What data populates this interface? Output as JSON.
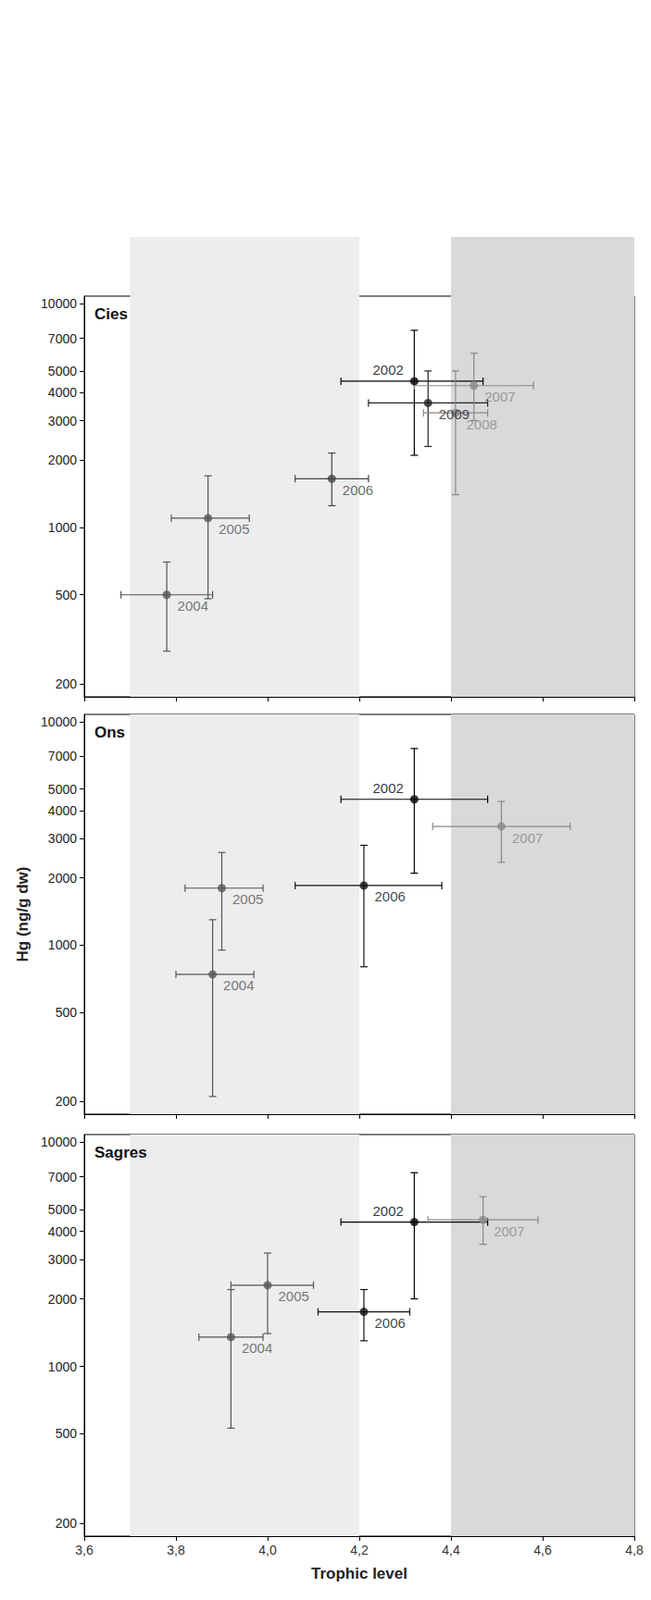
{
  "chart_data": [
    {
      "type": "scatter",
      "title": "Cies",
      "log": "y",
      "grid": false,
      "tick_labels": "y",
      "xlim": [
        3.6,
        4.8
      ],
      "xticks": [
        {
          "value": 3.6,
          "label": "3,6"
        },
        {
          "value": 3.8,
          "label": "3,8"
        },
        {
          "value": 4.0,
          "label": "4,0"
        },
        {
          "value": 4.2,
          "label": "4,2"
        },
        {
          "value": 4.4,
          "label": "4,4"
        },
        {
          "value": 4.6,
          "label": "4,6"
        },
        {
          "value": 4.8,
          "label": "4,8"
        }
      ],
      "ylim": [
        175,
        10800
      ],
      "yticks": [
        200,
        500,
        1000,
        2000,
        3000,
        4000,
        5000,
        7000,
        10000
      ],
      "shaded_ranges": [
        {
          "x": [
            3.7,
            4.2
          ],
          "color": "#ededed"
        },
        {
          "x": [
            4.4,
            4.8
          ],
          "color": "#d9d9d9"
        }
      ],
      "points": [
        {
          "label": "2002",
          "x": 4.32,
          "y": 4500,
          "x_err": [
            4.16,
            4.47
          ],
          "y_err": [
            2100,
            7600
          ],
          "color": "#000000"
        },
        {
          "label": "2009",
          "x": 4.35,
          "y": 3600,
          "x_err": [
            4.22,
            4.48
          ],
          "y_err": [
            2300,
            5000
          ],
          "color": "#222222"
        },
        {
          "label": "2007",
          "x": 4.45,
          "y": 4300,
          "x_err": [
            4.32,
            4.58
          ],
          "y_err": [
            3000,
            6000
          ],
          "color": "#888888"
        },
        {
          "label": "2008",
          "x": 4.41,
          "y": 3250,
          "x_err": [
            4.34,
            4.48
          ],
          "y_err": [
            1400,
            5000
          ],
          "color": "#888888"
        },
        {
          "label": "2006",
          "x": 4.14,
          "y": 1650,
          "x_err": [
            4.06,
            4.22
          ],
          "y_err": [
            1250,
            2150
          ],
          "color": "#444444"
        },
        {
          "label": "2005",
          "x": 3.87,
          "y": 1100,
          "x_err": [
            3.79,
            3.96
          ],
          "y_err": [
            480,
            1700
          ],
          "color": "#555555"
        },
        {
          "label": "2004",
          "x": 3.78,
          "y": 500,
          "x_err": [
            3.68,
            3.88
          ],
          "y_err": [
            280,
            700
          ],
          "color": "#555555"
        }
      ]
    },
    {
      "type": "scatter",
      "title": "Ons",
      "log": "y",
      "grid": false,
      "tick_labels": "y",
      "ylabel": "Hg (ng/g dw)",
      "xlim": [
        3.6,
        4.8
      ],
      "xticks": [
        {
          "value": 3.6,
          "label": "3,6"
        },
        {
          "value": 3.8,
          "label": "3,8"
        },
        {
          "value": 4.0,
          "label": "4,0"
        },
        {
          "value": 4.2,
          "label": "4,2"
        },
        {
          "value": 4.4,
          "label": "4,4"
        },
        {
          "value": 4.6,
          "label": "4,6"
        },
        {
          "value": 4.8,
          "label": "4,8"
        }
      ],
      "ylim": [
        175,
        10800
      ],
      "yticks": [
        200,
        500,
        1000,
        2000,
        3000,
        4000,
        5000,
        7000,
        10000
      ],
      "shaded_ranges": [
        {
          "x": [
            3.7,
            4.2
          ],
          "color": "#ededed"
        },
        {
          "x": [
            4.4,
            4.8
          ],
          "color": "#d9d9d9"
        }
      ],
      "points": [
        {
          "label": "2002",
          "x": 4.32,
          "y": 4500,
          "x_err": [
            4.16,
            4.48
          ],
          "y_err": [
            2100,
            7600
          ],
          "color": "#000000"
        },
        {
          "label": "2007",
          "x": 4.51,
          "y": 3400,
          "x_err": [
            4.36,
            4.66
          ],
          "y_err": [
            2350,
            4400
          ],
          "color": "#888888"
        },
        {
          "label": "2006",
          "x": 4.21,
          "y": 1850,
          "x_err": [
            4.06,
            4.38
          ],
          "y_err": [
            800,
            2800
          ],
          "color": "#111111"
        },
        {
          "label": "2005",
          "x": 3.9,
          "y": 1800,
          "x_err": [
            3.82,
            3.99
          ],
          "y_err": [
            950,
            2600
          ],
          "color": "#555555"
        },
        {
          "label": "2004",
          "x": 3.88,
          "y": 740,
          "x_err": [
            3.8,
            3.97
          ],
          "y_err": [
            210,
            1300
          ],
          "color": "#555555"
        }
      ]
    },
    {
      "type": "scatter",
      "title": "Sagres",
      "log": "y",
      "grid": false,
      "xlabel": "Trophic level",
      "xlim": [
        3.6,
        4.8
      ],
      "xticks": [
        {
          "value": 3.6,
          "label": "3,6"
        },
        {
          "value": 3.8,
          "label": "3,8"
        },
        {
          "value": 4.0,
          "label": "4,0"
        },
        {
          "value": 4.2,
          "label": "4,2"
        },
        {
          "value": 4.4,
          "label": "4,4"
        },
        {
          "value": 4.6,
          "label": "4,6"
        },
        {
          "value": 4.8,
          "label": "4,8"
        }
      ],
      "ylim": [
        175,
        10800
      ],
      "yticks": [
        200,
        500,
        1000,
        2000,
        3000,
        4000,
        5000,
        7000,
        10000
      ],
      "shaded_ranges": [
        {
          "x": [
            3.7,
            4.2
          ],
          "color": "#ededed"
        },
        {
          "x": [
            4.4,
            4.8
          ],
          "color": "#d9d9d9"
        }
      ],
      "points": [
        {
          "label": "2002",
          "x": 4.32,
          "y": 4400,
          "x_err": [
            4.16,
            4.48
          ],
          "y_err": [
            2000,
            7300
          ],
          "color": "#000000"
        },
        {
          "label": "2007",
          "x": 4.47,
          "y": 4500,
          "x_err": [
            4.35,
            4.59
          ],
          "y_err": [
            3500,
            5700
          ],
          "color": "#888888"
        },
        {
          "label": "2006",
          "x": 4.21,
          "y": 1750,
          "x_err": [
            4.11,
            4.31
          ],
          "y_err": [
            1300,
            2200
          ],
          "color": "#111111"
        },
        {
          "label": "2005",
          "x": 4.0,
          "y": 2300,
          "x_err": [
            3.92,
            4.1
          ],
          "y_err": [
            1400,
            3200
          ],
          "color": "#555555"
        },
        {
          "label": "2004",
          "x": 3.92,
          "y": 1350,
          "x_err": [
            3.85,
            3.99
          ],
          "y_err": [
            530,
            2200
          ],
          "color": "#555555"
        }
      ]
    }
  ]
}
